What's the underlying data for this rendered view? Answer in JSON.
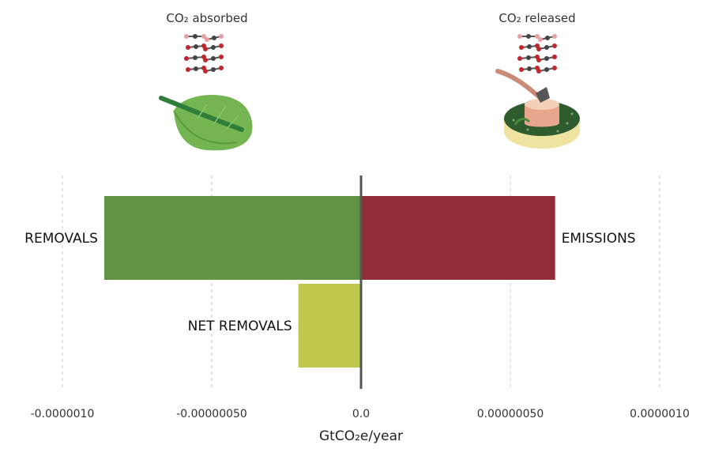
{
  "header": {
    "left_label": "CO₂ absorbed",
    "right_label": "CO₂ released",
    "left_icon": "leaf-icon",
    "right_icon": "deforestation-stump-icon",
    "co2_icon": "co2-molecules-icon"
  },
  "colors": {
    "removals": "#629342",
    "emissions": "#912c36",
    "net_removals": "#bfc74d",
    "axis": "#555555",
    "grid": "#cccccc"
  },
  "chart_data": {
    "type": "bar",
    "orientation": "horizontal",
    "title": "",
    "xlabel": "GtCO₂e/year",
    "ylabel": "",
    "xlim": [
      -1.1e-06,
      1.1e-06
    ],
    "xticks": [
      -1e-06,
      -5e-07,
      0.0,
      5e-07,
      1e-06
    ],
    "xtick_labels": [
      "-0.0000010",
      "-0.00000050",
      "0.0",
      "0.00000050",
      "0.0000010"
    ],
    "grid": true,
    "bars": [
      {
        "label": "REMOVALS",
        "value": -8.6e-07,
        "row": 0,
        "color": "#629342"
      },
      {
        "label": "EMISSIONS",
        "value": 6.5e-07,
        "row": 0,
        "color": "#912c36"
      },
      {
        "label": "NET REMOVALS",
        "value": -2.1e-07,
        "row": 1,
        "color": "#bfc74d"
      }
    ]
  }
}
